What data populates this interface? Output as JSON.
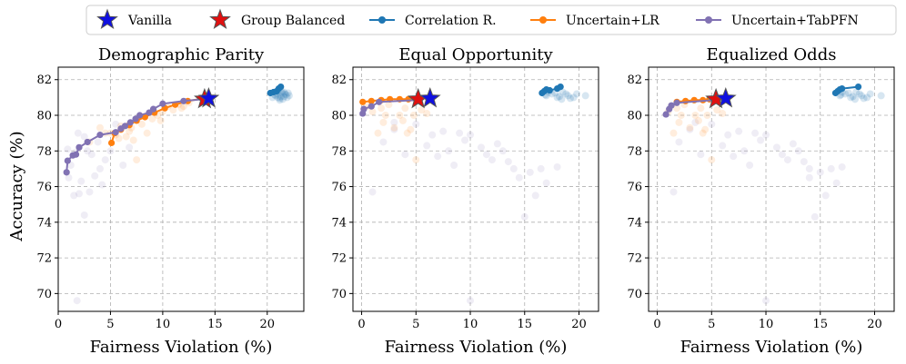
{
  "legend": [
    {
      "label": "Vanilla",
      "kind": "star",
      "color": "#1010e0"
    },
    {
      "label": "Group Balanced",
      "kind": "star",
      "color": "#e01010"
    },
    {
      "label": "Correlation R.",
      "kind": "line",
      "color": "#1f77b4"
    },
    {
      "label": "Uncertain+LR",
      "kind": "line",
      "color": "#ff7f0e"
    },
    {
      "label": "Uncertain+TabPFN",
      "kind": "line",
      "color": "#8172b3"
    }
  ],
  "ylabel": "Accuracy (%)",
  "chart_data": [
    {
      "type": "scatter",
      "title": "Demographic Parity",
      "xlabel": "Fairness Violation (%)",
      "xlim": [
        0,
        23.5
      ],
      "ylim": [
        69,
        82.7
      ],
      "xticks": [
        0,
        5,
        10,
        15,
        20
      ],
      "yticks": [
        70,
        72,
        74,
        76,
        78,
        80,
        82
      ],
      "series": [
        {
          "name": "Correlation R.",
          "color": "#1f77b4",
          "x": [
            20.3,
            20.6,
            20.9,
            21.1,
            21.3
          ],
          "y": [
            81.25,
            81.3,
            81.35,
            81.5,
            81.6
          ]
        },
        {
          "name": "Uncertain+LR",
          "color": "#ff7f0e",
          "x": [
            5.1,
            5.4,
            6.0,
            6.8,
            7.5,
            8.3,
            9.2,
            10.2,
            11.2,
            12.4,
            13.9
          ],
          "y": [
            78.45,
            79.0,
            79.2,
            79.45,
            79.7,
            79.9,
            80.15,
            80.4,
            80.6,
            80.8,
            80.95
          ]
        },
        {
          "name": "Uncertain+TabPFN",
          "color": "#8172b3",
          "x": [
            0.8,
            0.9,
            1.4,
            1.7,
            2.0,
            2.8,
            4.0,
            5.5,
            6.0,
            6.4,
            6.9,
            7.4,
            7.8,
            8.7,
            9.1,
            10.0,
            12.0,
            13.9
          ],
          "y": [
            76.8,
            77.45,
            77.75,
            77.8,
            78.2,
            78.5,
            78.9,
            79.05,
            79.25,
            79.4,
            79.6,
            79.8,
            80.0,
            80.15,
            80.35,
            80.65,
            80.8,
            80.9
          ]
        }
      ],
      "vanilla": {
        "x": 14.4,
        "y": 80.95
      },
      "group_balanced": {
        "x": 14.0,
        "y": 80.9
      },
      "clouds": {
        "blue": {
          "x": [
            20.5,
            20.8,
            21.0,
            21.2,
            21.4,
            21.6,
            21.8,
            22.0,
            21.1,
            21.5,
            20.9,
            21.7,
            21.3,
            22.1,
            21.0,
            21.6,
            20.7,
            21.9,
            21.4,
            21.2
          ],
          "y": [
            81.0,
            81.1,
            81.2,
            80.95,
            81.3,
            81.05,
            81.15,
            81.25,
            81.4,
            80.9,
            81.35,
            81.2,
            81.05,
            81.1,
            81.0,
            81.3,
            81.15,
            81.0,
            81.25,
            80.85
          ]
        },
        "orange": {
          "x": [
            3.0,
            4.0,
            5.0,
            5.5,
            6.0,
            6.5,
            7.0,
            7.5,
            8.0,
            8.5,
            9.0,
            9.5,
            10.0,
            10.5,
            11.0,
            11.5,
            12.0,
            12.5,
            7.2,
            6.8,
            5.8,
            4.5,
            9.8,
            11.8
          ],
          "y": [
            78.5,
            79.3,
            79.0,
            78.9,
            79.4,
            78.8,
            79.3,
            77.5,
            79.5,
            79.0,
            79.8,
            80.0,
            80.2,
            80.5,
            80.3,
            80.6,
            80.5,
            80.7,
            78.6,
            79.1,
            78.7,
            79.0,
            79.7,
            80.4
          ]
        },
        "purple": {
          "x": [
            1.0,
            1.5,
            2.0,
            2.5,
            3.0,
            3.5,
            4.0,
            4.5,
            5.0,
            1.8,
            2.8,
            3.8,
            1.2,
            4.2,
            6.2,
            6.8,
            2.2,
            3.2,
            5.5,
            1.6,
            2.5,
            0.9,
            1.9
          ],
          "y": [
            76.5,
            75.5,
            75.6,
            74.4,
            75.7,
            76.6,
            77.0,
            77.5,
            78.0,
            69.6,
            78.0,
            78.5,
            77.2,
            76.1,
            77.2,
            78.2,
            76.3,
            77.8,
            79.5,
            77.9,
            78.8,
            78.1,
            79.0
          ]
        }
      }
    },
    {
      "type": "scatter",
      "title": "Equal Opportunity",
      "xlabel": "Fairness Violation (%)",
      "xlim": [
        -0.8,
        21.8
      ],
      "ylim": [
        69,
        82.7
      ],
      "xticks": [
        0,
        5,
        10,
        15,
        20
      ],
      "yticks": [
        70,
        72,
        74,
        76,
        78,
        80,
        82
      ],
      "series": [
        {
          "name": "Correlation R.",
          "color": "#1f77b4",
          "x": [
            16.6,
            16.8,
            17.0,
            17.3,
            18.0,
            18.3
          ],
          "y": [
            81.25,
            81.35,
            81.45,
            81.4,
            81.5,
            81.6
          ]
        },
        {
          "name": "Uncertain+LR",
          "color": "#ff7f0e",
          "x": [
            0.1,
            0.9,
            1.8,
            2.6,
            3.5,
            4.3,
            5.1
          ],
          "y": [
            80.75,
            80.8,
            80.85,
            80.9,
            80.9,
            80.9,
            80.9
          ]
        },
        {
          "name": "Uncertain+TabPFN",
          "color": "#8172b3",
          "x": [
            0.1,
            0.2,
            0.9,
            1.6,
            5.1
          ],
          "y": [
            80.1,
            80.35,
            80.5,
            80.75,
            80.85
          ]
        }
      ],
      "vanilla": {
        "x": 6.3,
        "y": 80.95
      },
      "group_balanced": {
        "x": 5.2,
        "y": 80.9
      },
      "clouds": {
        "blue": {
          "x": [
            17.0,
            17.5,
            18.0,
            18.5,
            19.0,
            19.5,
            17.2,
            18.8,
            16.9,
            19.2,
            18.2,
            17.8,
            20.6,
            19.8,
            18.4
          ],
          "y": [
            81.1,
            81.2,
            81.0,
            81.3,
            81.1,
            81.0,
            81.3,
            81.2,
            81.15,
            80.95,
            81.05,
            81.25,
            81.1,
            81.2,
            80.9
          ]
        },
        "orange": {
          "x": [
            1.0,
            2.0,
            3.0,
            4.0,
            4.8,
            5.0,
            1.5,
            2.5,
            3.5,
            4.5,
            5.5,
            6.0,
            1.8,
            3.8,
            0.5,
            2.2,
            4.2
          ],
          "y": [
            80.2,
            79.6,
            79.3,
            80.4,
            80.0,
            77.5,
            79.0,
            80.6,
            80.0,
            79.2,
            80.3,
            80.1,
            80.4,
            79.7,
            80.5,
            80.0,
            79.0
          ]
        },
        "purple": {
          "x": [
            1.0,
            2.0,
            3.0,
            4.0,
            5.0,
            6.0,
            7.0,
            8.0,
            9.0,
            10.0,
            11.0,
            12.0,
            13.0,
            14.0,
            15.0,
            16.0,
            17.0,
            18.0,
            10.0,
            12.5,
            8.5,
            14.5,
            11.5,
            6.5,
            13.5,
            16.5,
            9.5,
            15.5,
            7.5,
            3.0
          ],
          "y": [
            75.7,
            78.5,
            79.2,
            77.8,
            79.5,
            78.3,
            77.7,
            78.0,
            79.0,
            78.9,
            78.2,
            77.5,
            78.0,
            77.0,
            74.3,
            75.5,
            76.2,
            77.1,
            69.6,
            78.4,
            77.2,
            76.5,
            77.8,
            78.9,
            77.4,
            77.0,
            78.6,
            76.8,
            79.1,
            79.6
          ]
        }
      }
    },
    {
      "type": "scatter",
      "title": "Equalized Odds",
      "xlabel": "Fairness Violation (%)",
      "xlim": [
        -0.8,
        21.8
      ],
      "ylim": [
        69,
        82.7
      ],
      "xticks": [
        0,
        5,
        10,
        15,
        20
      ],
      "yticks": [
        70,
        72,
        74,
        76,
        78,
        80,
        82
      ],
      "series": [
        {
          "name": "Correlation R.",
          "color": "#1f77b4",
          "x": [
            16.4,
            16.6,
            16.8,
            17.0,
            18.5
          ],
          "y": [
            81.25,
            81.35,
            81.45,
            81.5,
            81.6
          ]
        },
        {
          "name": "Uncertain+LR",
          "color": "#ff7f0e",
          "x": [
            1.8,
            2.6,
            3.4,
            4.2,
            4.8,
            5.2
          ],
          "y": [
            80.75,
            80.8,
            80.85,
            80.85,
            80.9,
            80.9
          ]
        },
        {
          "name": "Uncertain+TabPFN",
          "color": "#8172b3",
          "x": [
            0.8,
            1.1,
            1.3,
            1.8,
            5.2
          ],
          "y": [
            80.05,
            80.35,
            80.55,
            80.7,
            80.85
          ]
        }
      ],
      "vanilla": {
        "x": 6.3,
        "y": 80.95
      },
      "group_balanced": {
        "x": 5.4,
        "y": 80.9
      },
      "clouds": {
        "blue": {
          "x": [
            16.8,
            17.3,
            17.8,
            18.3,
            18.8,
            19.3,
            17.0,
            18.6,
            16.9,
            19.0,
            18.0,
            17.6,
            20.6,
            19.6,
            18.2
          ],
          "y": [
            81.1,
            81.2,
            81.0,
            81.3,
            81.1,
            81.0,
            81.3,
            81.2,
            81.15,
            80.95,
            81.05,
            81.25,
            81.1,
            81.2,
            80.9
          ]
        },
        "orange": {
          "x": [
            1.0,
            2.0,
            3.0,
            4.0,
            4.6,
            5.0,
            1.5,
            2.5,
            3.5,
            4.4,
            5.5,
            6.0,
            1.8,
            3.8,
            2.2,
            4.2
          ],
          "y": [
            80.2,
            79.6,
            79.3,
            80.4,
            80.0,
            77.5,
            79.0,
            80.6,
            80.0,
            79.2,
            80.3,
            80.1,
            80.4,
            79.7,
            80.0,
            79.0
          ]
        },
        "purple": {
          "x": [
            1.5,
            2.0,
            3.0,
            4.0,
            5.0,
            6.0,
            7.0,
            8.0,
            9.0,
            10.0,
            11.0,
            12.0,
            13.0,
            14.0,
            14.5,
            15.5,
            16.5,
            17.0,
            10.0,
            12.5,
            8.5,
            14.0,
            11.5,
            6.5,
            13.5,
            16.0,
            9.5,
            15.0,
            7.5,
            3.5
          ],
          "y": [
            75.7,
            78.5,
            79.2,
            77.8,
            79.5,
            78.3,
            77.7,
            78.0,
            79.0,
            78.9,
            78.2,
            77.5,
            78.0,
            77.0,
            74.3,
            75.5,
            76.2,
            77.1,
            69.6,
            78.4,
            77.2,
            76.5,
            77.8,
            78.9,
            77.4,
            77.0,
            78.6,
            76.8,
            79.1,
            79.6
          ]
        }
      }
    }
  ]
}
